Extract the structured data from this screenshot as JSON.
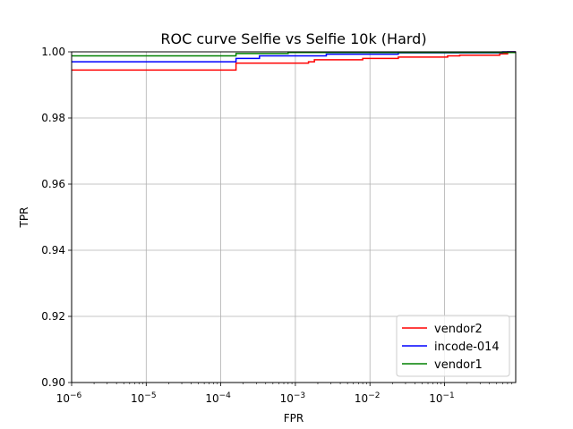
{
  "chart_data": {
    "type": "line",
    "title": "ROC curve Selfie vs Selfie 10k (Hard)",
    "xlabel": "FPR",
    "ylabel": "TPR",
    "xscale": "log",
    "xlim": [
      1e-06,
      0.9
    ],
    "ylim": [
      0.9,
      1.0
    ],
    "x_ticks": [
      {
        "value": 1e-06,
        "base": "10",
        "exp": "−6"
      },
      {
        "value": 1e-05,
        "base": "10",
        "exp": "−5"
      },
      {
        "value": 0.0001,
        "base": "10",
        "exp": "−4"
      },
      {
        "value": 0.001,
        "base": "10",
        "exp": "−3"
      },
      {
        "value": 0.01,
        "base": "10",
        "exp": "−2"
      },
      {
        "value": 0.1,
        "base": "10",
        "exp": "−1"
      }
    ],
    "y_ticks": [
      {
        "value": 0.9,
        "label": "0.90"
      },
      {
        "value": 0.92,
        "label": "0.92"
      },
      {
        "value": 0.94,
        "label": "0.94"
      },
      {
        "value": 0.96,
        "label": "0.96"
      },
      {
        "value": 0.98,
        "label": "0.98"
      },
      {
        "value": 1.0,
        "label": "1.00"
      }
    ],
    "grid": true,
    "legend_position": "bottom-right",
    "series": [
      {
        "name": "vendor2",
        "color": "#ff0000",
        "points": [
          [
            1e-06,
            0.9945
          ],
          [
            0.00016,
            0.9945
          ],
          [
            0.00016,
            0.9966
          ],
          [
            0.0015,
            0.9966
          ],
          [
            0.0015,
            0.997
          ],
          [
            0.0018,
            0.997
          ],
          [
            0.0018,
            0.9976
          ],
          [
            0.008,
            0.9976
          ],
          [
            0.008,
            0.998
          ],
          [
            0.024,
            0.998
          ],
          [
            0.024,
            0.9984
          ],
          [
            0.11,
            0.9984
          ],
          [
            0.11,
            0.9988
          ],
          [
            0.16,
            0.9988
          ],
          [
            0.16,
            0.999
          ],
          [
            0.55,
            0.999
          ],
          [
            0.55,
            0.9994
          ],
          [
            0.7,
            0.9994
          ],
          [
            0.7,
            1.0
          ],
          [
            0.9,
            1.0
          ]
        ]
      },
      {
        "name": "incode-014",
        "color": "#0000ff",
        "points": [
          [
            1e-06,
            0.997
          ],
          [
            0.00016,
            0.997
          ],
          [
            0.00016,
            0.998
          ],
          [
            0.00033,
            0.998
          ],
          [
            0.00033,
            0.9988
          ],
          [
            0.0026,
            0.9988
          ],
          [
            0.0026,
            0.9993
          ],
          [
            0.024,
            0.9993
          ],
          [
            0.024,
            0.9997
          ],
          [
            0.6,
            0.9997
          ],
          [
            0.6,
            1.0
          ],
          [
            0.9,
            1.0
          ]
        ]
      },
      {
        "name": "vendor1",
        "color": "#008000",
        "points": [
          [
            1e-06,
            0.9988
          ],
          [
            0.00016,
            0.9988
          ],
          [
            0.00016,
            0.9995
          ],
          [
            0.0008,
            0.9995
          ],
          [
            0.0008,
            0.9998
          ],
          [
            0.9,
            0.9998
          ]
        ]
      }
    ]
  }
}
